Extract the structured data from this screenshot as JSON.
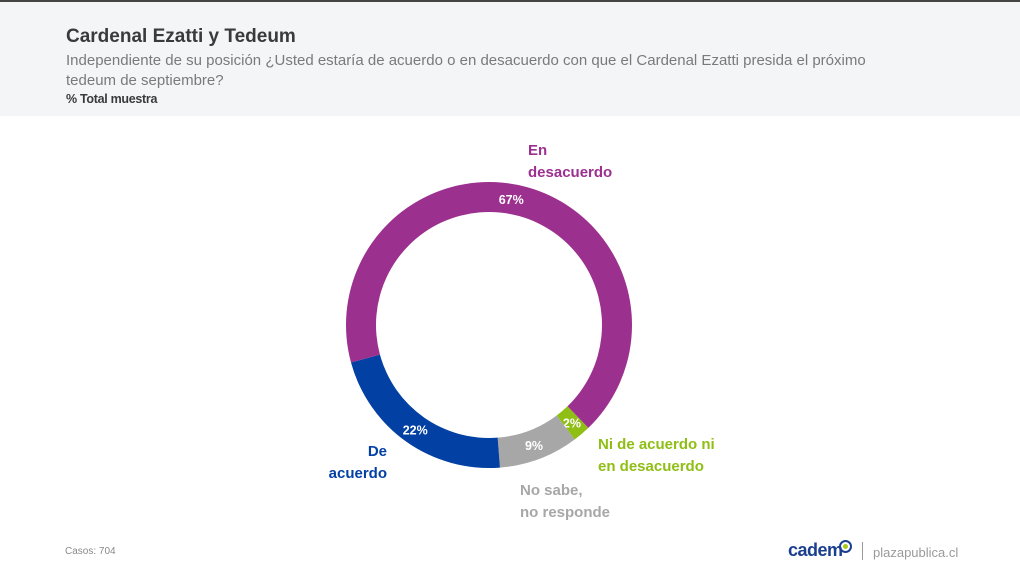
{
  "header": {
    "title": "Cardenal Ezatti y Tedeum",
    "subtitle": "Independiente de su posición ¿Usted estaría de acuerdo o en desacuerdo con que el Cardenal Ezatti presida el próximo tedeum de septiembre?",
    "base": "% Total muestra"
  },
  "footer": {
    "cases": "Casos: 704",
    "brand": "cadem",
    "site": "plazapublica.cl"
  },
  "chart_data": {
    "type": "pie",
    "variant": "donut",
    "title": "Cardenal Ezatti y Tedeum",
    "start_angle_deg": 136,
    "direction": "clockwise",
    "slices": [
      {
        "name": "Ni de acuerdo ni en desacuerdo",
        "value": 2,
        "label": "2%",
        "color": "#8fbe14",
        "legend_lines": [
          "Ni de acuerdo ni",
          "en desacuerdo"
        ]
      },
      {
        "name": "No sabe, no responde",
        "value": 9,
        "label": "9%",
        "color": "#a7a7a7",
        "legend_lines": [
          "No sabe,",
          "no responde"
        ]
      },
      {
        "name": "De acuerdo",
        "value": 22,
        "label": "22%",
        "color": "#0340a3",
        "legend_lines": [
          "De",
          "acuerdo"
        ]
      },
      {
        "name": "En desacuerdo",
        "value": 67,
        "label": "67%",
        "color": "#9c308f",
        "legend_lines": [
          "En",
          "desacuerdo"
        ]
      }
    ]
  }
}
